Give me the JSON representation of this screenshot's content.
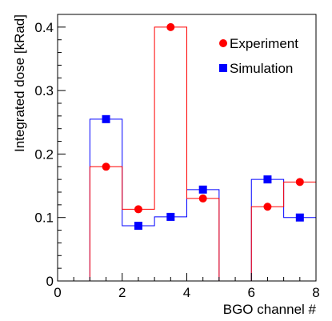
{
  "chart_data": {
    "type": "step",
    "xlabel": "BGO channel #",
    "ylabel": "Integrated dose [kRad]",
    "xlim": [
      0,
      8
    ],
    "ylim": [
      0,
      0.42
    ],
    "x_ticks": [
      0,
      2,
      4,
      6,
      8
    ],
    "y_ticks": [
      0,
      0.1,
      0.2,
      0.3,
      0.4
    ],
    "x_tick_labels": [
      "0",
      "2",
      "4",
      "6",
      "8"
    ],
    "y_tick_labels": [
      "0",
      "0.1",
      "0.2",
      "0.3",
      "0.4"
    ],
    "grid": false,
    "legend_position": "top-right",
    "bin_edges": [
      0,
      1,
      2,
      3,
      4,
      5,
      6,
      7,
      8
    ],
    "bin_centers": [
      1.5,
      2.5,
      3.5,
      4.5,
      6.5,
      7.5
    ],
    "series": [
      {
        "name": "Experiment",
        "color": "#ff0000",
        "marker": "circle",
        "bin_values": [
          0,
          0.18,
          0.113,
          0.4,
          0.13,
          0,
          0.117,
          0.156
        ],
        "points": [
          {
            "x": 1.5,
            "y": 0.18
          },
          {
            "x": 2.5,
            "y": 0.113
          },
          {
            "x": 3.5,
            "y": 0.4
          },
          {
            "x": 4.5,
            "y": 0.13
          },
          {
            "x": 6.5,
            "y": 0.117
          },
          {
            "x": 7.5,
            "y": 0.156
          }
        ]
      },
      {
        "name": "Simulation",
        "color": "#0000ff",
        "marker": "square",
        "bin_values": [
          0,
          0.255,
          0.087,
          0.101,
          0.144,
          0,
          0.16,
          0.1
        ],
        "points": [
          {
            "x": 1.5,
            "y": 0.255
          },
          {
            "x": 2.5,
            "y": 0.087
          },
          {
            "x": 3.5,
            "y": 0.101
          },
          {
            "x": 4.5,
            "y": 0.144
          },
          {
            "x": 6.5,
            "y": 0.16
          },
          {
            "x": 7.5,
            "y": 0.1
          }
        ]
      }
    ]
  }
}
